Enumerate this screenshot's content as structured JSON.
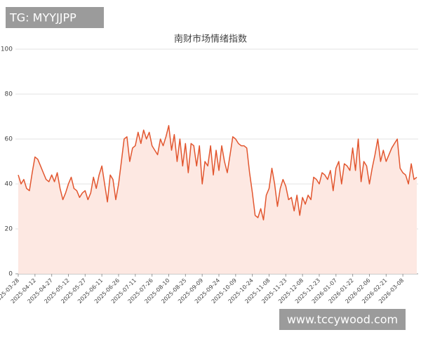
{
  "chart_data": {
    "type": "area",
    "title": "南财市场情绪指数",
    "watermarks": [
      "TG: MYYJJPP",
      "www.tccywood.com"
    ],
    "categories": [
      "2025-03-28",
      null,
      null,
      null,
      null,
      null,
      "2025-04-12",
      null,
      null,
      null,
      null,
      null,
      "2025-04-27",
      null,
      null,
      null,
      null,
      null,
      "2025-05-12",
      null,
      null,
      null,
      null,
      null,
      "2025-05-27",
      null,
      null,
      null,
      null,
      null,
      "2025-06-11",
      null,
      null,
      null,
      null,
      null,
      "2025-06-26",
      null,
      null,
      null,
      null,
      null,
      "2025-07-11",
      null,
      null,
      null,
      null,
      null,
      "2025-07-26",
      null,
      null,
      null,
      null,
      null,
      "2025-08-10",
      null,
      null,
      null,
      null,
      null,
      "2025-08-25",
      null,
      null,
      null,
      null,
      null,
      "2025-09-09",
      null,
      null,
      null,
      null,
      null,
      "2025-09-24",
      null,
      null,
      null,
      null,
      null,
      "2025-10-09",
      null,
      null,
      null,
      null,
      null,
      "2025-10-24",
      null,
      null,
      null,
      null,
      null,
      "2025-11-08",
      null,
      null,
      null,
      null,
      null,
      "2025-11-23",
      null,
      null,
      null,
      null,
      null,
      "2025-12-08",
      null,
      null,
      null,
      null,
      null,
      "2025-12-23",
      null,
      null,
      null,
      null,
      null,
      "2026-01-07",
      null,
      null,
      null,
      null,
      null,
      "2026-01-22",
      null,
      null,
      null,
      null,
      null,
      "2026-02-06",
      null,
      null,
      null,
      null,
      null,
      "2026-02-21",
      null,
      null,
      null,
      null,
      null,
      "2026-03-08",
      null,
      null,
      null,
      null,
      null
    ],
    "values": [
      44,
      40,
      42,
      38,
      37,
      45,
      52,
      51,
      48,
      45,
      42,
      41,
      44,
      41,
      45,
      38,
      33,
      36,
      40,
      43,
      38,
      37,
      34,
      36,
      37,
      33,
      36,
      43,
      38,
      44,
      48,
      40,
      32,
      44,
      42,
      33,
      40,
      50,
      60,
      61,
      50,
      56,
      57,
      63,
      58,
      64,
      60,
      63,
      57,
      55,
      53,
      60,
      57,
      61,
      66,
      55,
      62,
      50,
      60,
      48,
      58,
      45,
      58,
      57,
      48,
      57,
      40,
      50,
      48,
      57,
      44,
      55,
      46,
      57,
      50,
      45,
      53,
      61,
      60,
      58,
      57,
      57,
      56,
      45,
      36,
      26,
      25,
      29,
      24,
      35,
      38,
      47,
      40,
      30,
      38,
      42,
      39,
      33,
      34,
      28,
      35,
      26,
      34,
      31,
      35,
      33,
      43,
      42,
      40,
      45,
      44,
      42,
      46,
      37,
      47,
      50,
      40,
      49,
      48,
      46,
      56,
      46,
      60,
      41,
      50,
      48,
      40,
      47,
      53,
      60,
      50,
      55,
      50,
      53,
      56,
      58,
      60,
      47,
      45,
      44,
      40,
      49,
      42,
      43
    ],
    "color": "#e2562f",
    "fill": "#fde8e2",
    "ylim": [
      0,
      100
    ],
    "yticks": [
      0,
      20,
      40,
      60,
      80,
      100
    ],
    "grid": true
  }
}
